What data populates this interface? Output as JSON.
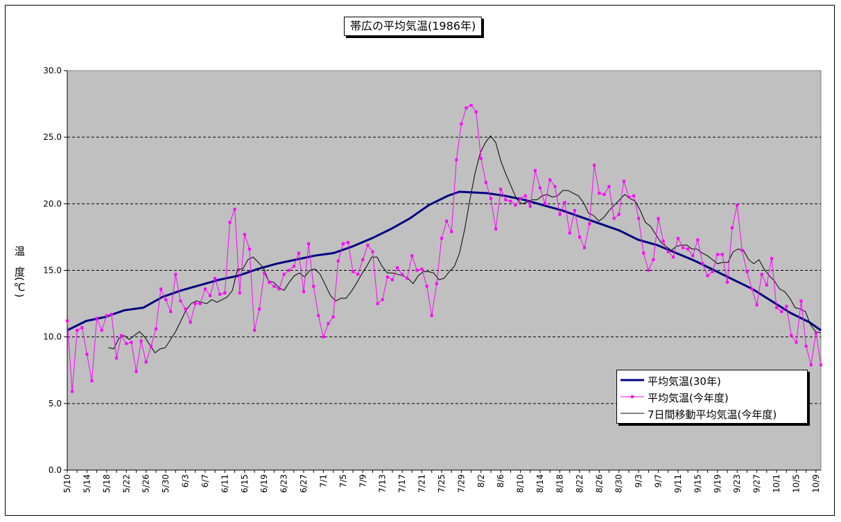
{
  "chart_data": {
    "type": "line",
    "title": "帯広の平均気温(1986年)",
    "ylabel": "温　度(℃)",
    "ylim": [
      0,
      30
    ],
    "yticks": [
      "0.0",
      "5.0",
      "10.0",
      "15.0",
      "20.0",
      "25.0",
      "30.0"
    ],
    "yvals": [
      0,
      5,
      10,
      15,
      20,
      25,
      30
    ],
    "x_tick_labels": [
      "5/10",
      "5/14",
      "5/18",
      "5/22",
      "5/26",
      "5/30",
      "6/3",
      "6/7",
      "6/11",
      "6/15",
      "6/19",
      "6/23",
      "6/27",
      "7/1",
      "7/5",
      "7/9",
      "7/13",
      "7/17",
      "7/21",
      "7/25",
      "7/29",
      "8/2",
      "8/6",
      "8/10",
      "8/14",
      "8/18",
      "8/22",
      "8/26",
      "8/30",
      "9/3",
      "9/7",
      "9/11",
      "9/15",
      "9/19",
      "9/23",
      "9/27",
      "10/1",
      "10/5",
      "10/9"
    ],
    "num_days": 154,
    "plot_bg": "#c0c0c0",
    "series": [
      {
        "name": "平均気温(30年)",
        "color": "#000080",
        "anchors": [
          [
            0,
            10.5
          ],
          [
            5,
            11.2
          ],
          [
            10,
            11.5
          ],
          [
            15,
            12.0
          ],
          [
            20,
            12.2
          ],
          [
            25,
            13.0
          ],
          [
            30,
            13.5
          ],
          [
            35,
            13.9
          ],
          [
            40,
            14.3
          ],
          [
            45,
            14.6
          ],
          [
            50,
            15.1
          ],
          [
            55,
            15.5
          ],
          [
            60,
            15.8
          ],
          [
            65,
            16.1
          ],
          [
            70,
            16.3
          ],
          [
            75,
            16.8
          ],
          [
            80,
            17.4
          ],
          [
            85,
            18.1
          ],
          [
            90,
            18.9
          ],
          [
            95,
            19.9
          ],
          [
            100,
            20.6
          ],
          [
            103,
            20.9
          ],
          [
            110,
            20.8
          ],
          [
            115,
            20.6
          ],
          [
            120,
            20.3
          ],
          [
            125,
            19.9
          ],
          [
            130,
            19.5
          ],
          [
            135,
            19.0
          ],
          [
            140,
            18.5
          ],
          [
            145,
            18.0
          ],
          [
            150,
            17.3
          ],
          [
            155,
            16.9
          ],
          [
            160,
            16.3
          ],
          [
            165,
            15.7
          ],
          [
            170,
            15.0
          ],
          [
            175,
            14.3
          ],
          [
            180,
            13.6
          ],
          [
            185,
            12.7
          ],
          [
            190,
            11.8
          ],
          [
            195,
            11.1
          ],
          [
            198,
            10.5
          ]
        ]
      },
      {
        "name": "平均気温(今年度)",
        "color": "#ff00ff",
        "values": [
          11.2,
          5.9,
          10.5,
          10.7,
          8.7,
          6.7,
          11.4,
          10.5,
          11.6,
          11.7,
          8.4,
          10.1,
          9.5,
          9.6,
          7.4,
          9.7,
          8.1,
          9.3,
          10.6,
          13.6,
          12.8,
          11.9,
          14.7,
          12.7,
          12.1,
          11.1,
          12.5,
          12.5,
          13.6,
          13.1,
          14.4,
          13.2,
          13.3,
          18.6,
          19.6,
          13.3,
          17.7,
          16.6,
          10.5,
          12.1,
          14.8,
          14.1,
          13.8,
          13.6,
          14.7,
          15.0,
          15.3,
          16.3,
          13.4,
          17.0,
          13.8,
          11.6,
          10.0,
          11.0,
          11.5,
          15.7,
          17.0,
          17.1,
          14.9,
          14.7,
          15.8,
          16.9,
          16.4,
          12.5,
          12.8,
          14.5,
          14.3,
          15.2,
          14.7,
          14.4,
          16.1,
          15.0,
          15.1,
          13.8,
          11.6,
          14.0,
          17.4,
          18.7,
          17.9,
          23.3,
          26.0,
          27.2,
          27.4,
          26.9,
          23.4,
          21.6,
          20.4,
          18.1,
          21.1,
          20.3,
          20.2,
          19.9,
          20.4,
          20.6,
          19.8,
          22.5,
          21.2,
          20.0,
          21.8,
          21.3,
          19.2,
          20.1,
          17.8,
          19.5,
          17.5,
          16.7,
          18.5,
          22.9,
          20.8,
          20.7,
          21.3,
          18.9,
          19.2,
          21.7,
          20.5,
          20.6,
          18.9,
          16.3,
          15.0,
          15.8,
          18.9,
          17.2,
          16.4,
          16.0,
          17.4,
          16.7,
          16.6,
          16.1,
          17.3,
          15.5,
          14.6,
          14.9,
          16.2,
          16.2,
          14.1,
          18.2,
          19.9,
          16.5,
          14.9,
          13.6,
          12.4,
          14.7,
          13.9,
          15.9,
          12.2,
          11.9,
          12.3,
          10.1,
          9.6,
          12.7,
          9.3,
          7.9,
          10.3,
          7.9
        ]
      },
      {
        "name": "7日間移動平均気温(今年度)",
        "color": "#000000",
        "start": 8,
        "values": [
          9.2,
          9.1,
          9.9,
          10.1,
          9.8,
          10.1,
          10.4,
          10.0,
          9.4,
          8.8,
          9.1,
          9.2,
          9.8,
          10.4,
          11.2,
          12.0,
          12.5,
          12.7,
          12.6,
          12.5,
          12.8,
          12.6,
          12.8,
          13.0,
          13.5,
          15.1,
          15.1,
          15.8,
          16.0,
          15.6,
          15.2,
          14.2,
          14.1,
          13.7,
          13.5,
          14.1,
          14.6,
          14.8,
          14.5,
          15.0,
          15.1,
          14.7,
          13.9,
          13.1,
          12.7,
          12.9,
          12.9,
          13.4,
          14.0,
          14.7,
          15.3,
          16.0,
          16.0,
          15.3,
          14.8,
          14.8,
          14.7,
          14.6,
          14.4,
          14.0,
          14.6,
          14.9,
          14.9,
          14.8,
          14.3,
          14.4,
          14.9,
          15.3,
          16.3,
          18.1,
          20.3,
          22.3,
          23.8,
          24.6,
          25.1,
          24.6,
          23.2,
          22.2,
          21.3,
          20.4,
          20.0,
          20.1,
          20.3,
          20.3,
          20.6,
          20.7,
          20.5,
          20.6,
          21.0,
          21.0,
          20.8,
          20.6,
          20.1,
          19.3,
          19.1,
          18.7,
          19.0,
          19.5,
          19.9,
          20.3,
          20.7,
          20.4,
          20.2,
          19.5,
          18.6,
          18.3,
          17.7,
          17.1,
          16.8,
          16.5,
          16.8,
          16.9,
          16.9,
          16.6,
          16.6,
          16.3,
          16.1,
          15.8,
          15.5,
          15.6,
          15.6,
          16.4,
          16.6,
          16.5,
          15.8,
          15.5,
          15.8,
          15.1,
          14.6,
          14.2,
          13.6,
          13.4,
          12.9,
          12.2,
          12.1,
          11.9,
          10.9,
          10.4,
          10.3
        ]
      }
    ]
  }
}
